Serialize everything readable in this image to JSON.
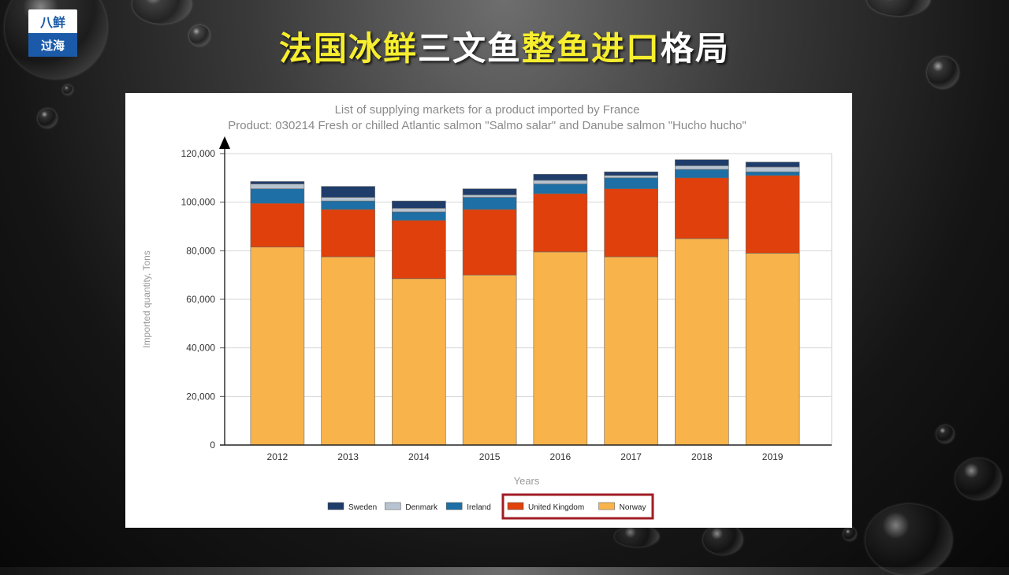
{
  "logo": {
    "top": "八鲜",
    "bottom": "过海"
  },
  "slide_title": [
    {
      "text": "法国冰鲜",
      "color": "yellow"
    },
    {
      "text": "三文鱼",
      "color": "white"
    },
    {
      "text": "整鱼进口",
      "color": "yellow"
    },
    {
      "text": "格局",
      "color": "white"
    }
  ],
  "chart_data": {
    "type": "bar",
    "stacked": true,
    "title": "List of supplying markets for a product imported by France",
    "subtitle": "Product: 030214 Fresh or chilled Atlantic salmon \"Salmo salar\" and Danube salmon \"Hucho hucho\"",
    "xlabel": "Years",
    "ylabel": "Imported quantity, Tons",
    "ylim": [
      0,
      120000
    ],
    "yticks": [
      0,
      20000,
      40000,
      60000,
      80000,
      100000,
      120000
    ],
    "ytick_labels": [
      "0",
      "20,000",
      "40,000",
      "60,000",
      "80,000",
      "100,000",
      "120,000"
    ],
    "categories": [
      "2012",
      "2013",
      "2014",
      "2015",
      "2016",
      "2017",
      "2018",
      "2019"
    ],
    "series": [
      {
        "name": "Norway",
        "color": "#f8b34a",
        "values": [
          81500,
          77500,
          68500,
          70000,
          79500,
          77500,
          85000,
          79000
        ]
      },
      {
        "name": "United Kingdom",
        "color": "#e0400b",
        "values": [
          18000,
          19500,
          24000,
          27000,
          24000,
          28000,
          25000,
          32000
        ]
      },
      {
        "name": "Ireland",
        "color": "#1d6fa5",
        "values": [
          6000,
          3500,
          3500,
          5000,
          4000,
          4500,
          3500,
          1500
        ]
      },
      {
        "name": "Denmark",
        "color": "#b7c3d0",
        "values": [
          2000,
          1500,
          1500,
          1000,
          1500,
          1000,
          1500,
          2000
        ]
      },
      {
        "name": "Sweden",
        "color": "#1f3d6b",
        "values": [
          1000,
          4500,
          3000,
          2500,
          2500,
          1500,
          2500,
          2000
        ]
      }
    ],
    "legend": {
      "order": [
        "Sweden",
        "Denmark",
        "Ireland",
        "United Kingdom",
        "Norway"
      ],
      "placement": "bottom",
      "highlight_box": [
        "United Kingdom",
        "Norway"
      ],
      "highlight_color": "#a11c25"
    },
    "grid": true
  }
}
